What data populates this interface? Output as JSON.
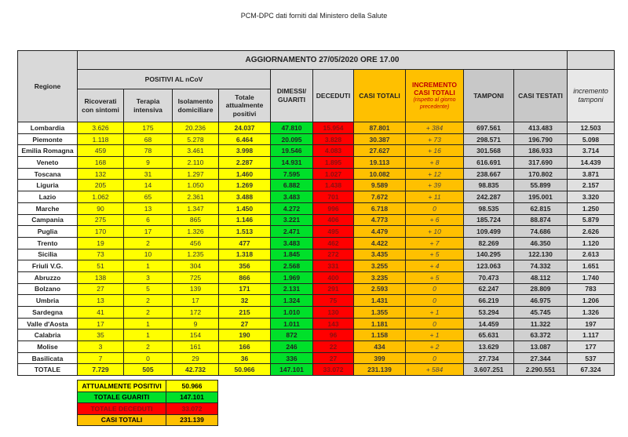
{
  "title": "PCM-DPC dati forniti dal Ministero della Salute",
  "header": {
    "update": "AGGIORNAMENTO 27/05/2020 ORE 17.00",
    "regione": "Regione",
    "positivi": "POSITIVI AL nCoV",
    "ricoverati": "Ricoverati con sintomi",
    "terapia": "Terapia intensiva",
    "isolamento": "Isolamento domiciliare",
    "totale_pos": "Totale attualmente positivi",
    "dimessi": "DIMESSI/ GUARITI",
    "deceduti": "DECEDUTI",
    "casi_totali": "CASI TOTALI",
    "incremento": "INCREMENTO CASI TOTALI",
    "incremento_note": "(rispetto al giorno precedente)",
    "tamponi": "TAMPONI",
    "casi_testati": "CASI TESTATI",
    "incremento_tamponi": "incremento tamponi"
  },
  "rows": [
    [
      "Lombardia",
      "3.626",
      "175",
      "20.236",
      "24.037",
      "47.810",
      "15.954",
      "87.801",
      "+ 384",
      "697.561",
      "413.483",
      "12.503"
    ],
    [
      "Piemonte",
      "1.118",
      "68",
      "5.278",
      "6.464",
      "20.095",
      "3.828",
      "30.387",
      "+ 73",
      "298.571",
      "196.790",
      "5.098"
    ],
    [
      "Emilia Romagna",
      "459",
      "78",
      "3.461",
      "3.998",
      "19.546",
      "4.083",
      "27.627",
      "+ 16",
      "301.568",
      "186.933",
      "3.714"
    ],
    [
      "Veneto",
      "168",
      "9",
      "2.110",
      "2.287",
      "14.931",
      "1.895",
      "19.113",
      "+ 8",
      "616.691",
      "317.690",
      "14.439"
    ],
    [
      "Toscana",
      "132",
      "31",
      "1.297",
      "1.460",
      "7.595",
      "1.027",
      "10.082",
      "+ 12",
      "238.667",
      "170.802",
      "3.871"
    ],
    [
      "Liguria",
      "205",
      "14",
      "1.050",
      "1.269",
      "6.882",
      "1.438",
      "9.589",
      "+ 39",
      "98.835",
      "55.899",
      "2.157"
    ],
    [
      "Lazio",
      "1.062",
      "65",
      "2.361",
      "3.488",
      "3.483",
      "701",
      "7.672",
      "+ 11",
      "242.287",
      "195.001",
      "3.320"
    ],
    [
      "Marche",
      "90",
      "13",
      "1.347",
      "1.450",
      "4.272",
      "996",
      "6.718",
      "0",
      "98.535",
      "62.815",
      "1.250"
    ],
    [
      "Campania",
      "275",
      "6",
      "865",
      "1.146",
      "3.221",
      "406",
      "4.773",
      "+ 6",
      "185.724",
      "88.874",
      "5.879"
    ],
    [
      "Puglia",
      "170",
      "17",
      "1.326",
      "1.513",
      "2.471",
      "495",
      "4.479",
      "+ 10",
      "109.499",
      "74.686",
      "2.626"
    ],
    [
      "Trento",
      "19",
      "2",
      "456",
      "477",
      "3.483",
      "462",
      "4.422",
      "+ 7",
      "82.269",
      "46.350",
      "1.120"
    ],
    [
      "Sicilia",
      "73",
      "10",
      "1.235",
      "1.318",
      "1.845",
      "272",
      "3.435",
      "+ 5",
      "140.295",
      "122.130",
      "2.613"
    ],
    [
      "Friuli V.G.",
      "51",
      "1",
      "304",
      "356",
      "2.568",
      "331",
      "3.255",
      "+ 4",
      "123.063",
      "74.332",
      "1.651"
    ],
    [
      "Abruzzo",
      "138",
      "3",
      "725",
      "866",
      "1.969",
      "400",
      "3.235",
      "+ 5",
      "70.473",
      "48.112",
      "1.740"
    ],
    [
      "Bolzano",
      "27",
      "5",
      "139",
      "171",
      "2.131",
      "291",
      "2.593",
      "0",
      "62.247",
      "28.809",
      "783"
    ],
    [
      "Umbria",
      "13",
      "2",
      "17",
      "32",
      "1.324",
      "75",
      "1.431",
      "0",
      "66.219",
      "46.975",
      "1.206"
    ],
    [
      "Sardegna",
      "41",
      "2",
      "172",
      "215",
      "1.010",
      "130",
      "1.355",
      "+ 1",
      "53.294",
      "45.745",
      "1.326"
    ],
    [
      "Valle d'Aosta",
      "17",
      "1",
      "9",
      "27",
      "1.011",
      "143",
      "1.181",
      "0",
      "14.459",
      "11.322",
      "197"
    ],
    [
      "Calabria",
      "35",
      "1",
      "154",
      "190",
      "872",
      "96",
      "1.158",
      "+ 1",
      "65.631",
      "63.372",
      "1.117"
    ],
    [
      "Molise",
      "3",
      "2",
      "161",
      "166",
      "246",
      "22",
      "434",
      "+ 2",
      "13.629",
      "13.087",
      "177"
    ],
    [
      "Basilicata",
      "7",
      "0",
      "29",
      "36",
      "336",
      "27",
      "399",
      "0",
      "27.734",
      "27.344",
      "537"
    ]
  ],
  "totale": [
    "TOTALE",
    "7.729",
    "505",
    "42.732",
    "50.966",
    "147.101",
    "33.072",
    "231.139",
    "+ 584",
    "3.607.251",
    "2.290.551",
    "67.324"
  ],
  "summary": [
    {
      "label": "ATTUALMENTE POSITIVI",
      "value": "50.966",
      "color": "#ffff00"
    },
    {
      "label": "TOTALE GUARITI",
      "value": "147.101",
      "color": "#00e02a"
    },
    {
      "label": "TOTALE DECEDUTI",
      "value": "33.072",
      "color": "#ff0000"
    },
    {
      "label": "CASI TOTALI",
      "value": "231.139",
      "color": "#ffc000"
    }
  ]
}
